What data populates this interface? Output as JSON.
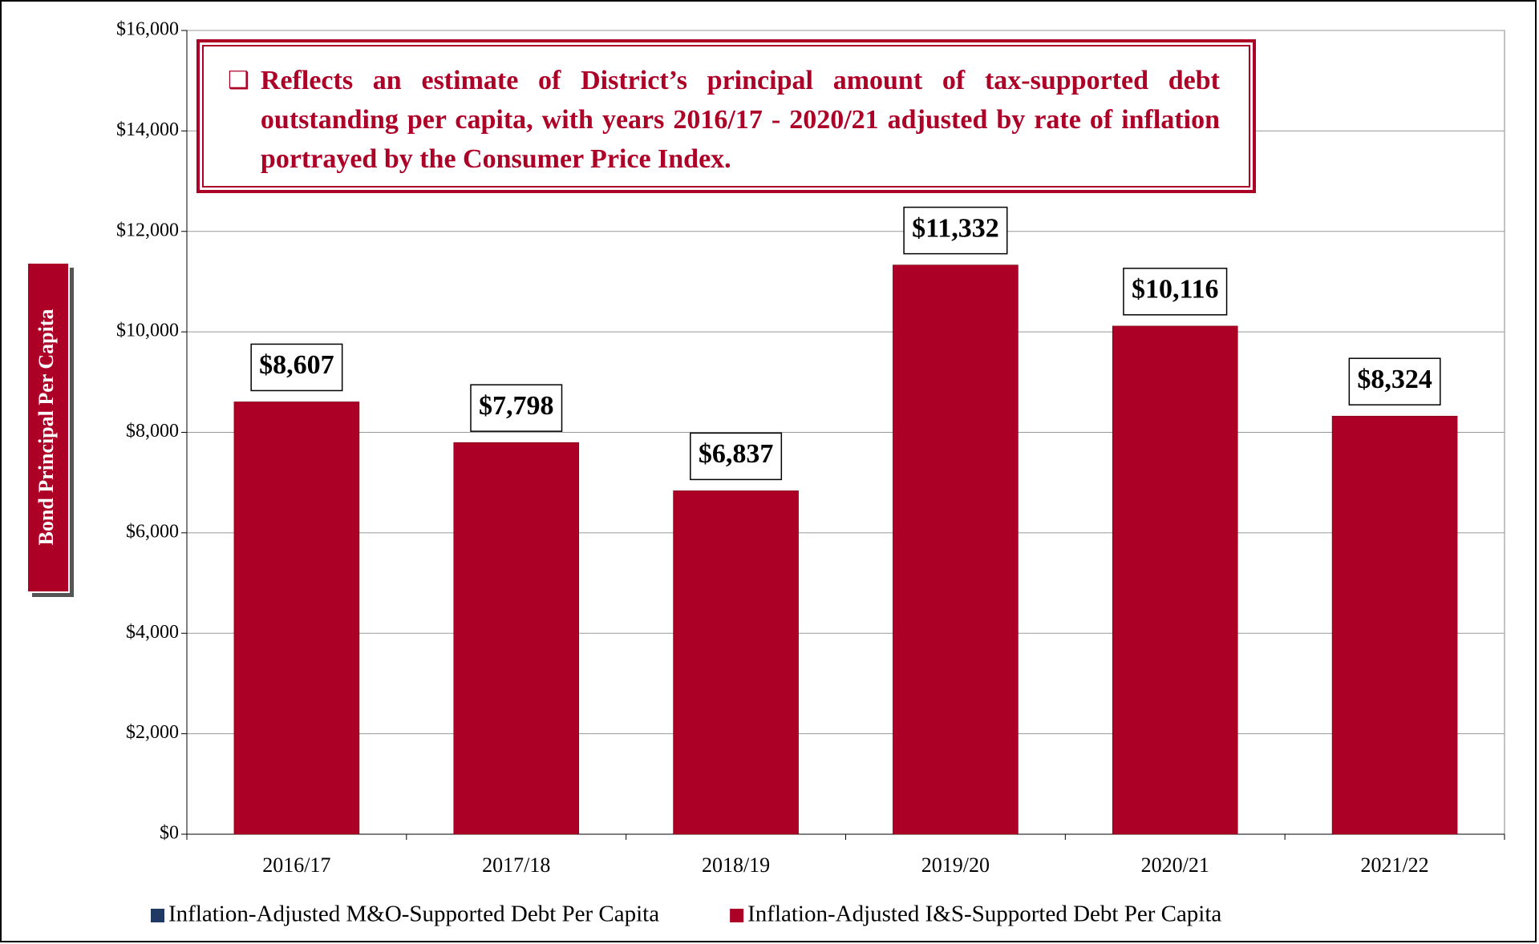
{
  "chart_data": {
    "type": "bar",
    "stacked": true,
    "ylabel": "Bond Principal Per Capita",
    "annotation": "Reflects an estimate of District’s principal amount of tax-supported debt outstanding per capita, with years 2016/17 - 2020/21 adjusted by rate of inflation portrayed by the Consumer Price Index.",
    "categories": [
      "2016/17",
      "2017/18",
      "2018/19",
      "2019/20",
      "2020/21",
      "2021/22"
    ],
    "series": [
      {
        "name": "Inflation-Adjusted M&O-Supported Debt Per Capita",
        "color": "#1f3864",
        "values": [
          0,
          0,
          0,
          0,
          0,
          0
        ]
      },
      {
        "name": "Inflation-Adjusted I&S-Supported Debt Per Capita",
        "color": "#ad0027",
        "values": [
          8607,
          7798,
          6837,
          11332,
          10116,
          8324
        ],
        "value_labels": [
          "$8,607",
          "$7,798",
          "$6,837",
          "$11,332",
          "$10,116",
          "$8,324"
        ]
      }
    ],
    "ylim": [
      0,
      16000
    ],
    "yticks": [
      {
        "value": 0,
        "label": "$0"
      },
      {
        "value": 2000,
        "label": "$2,000"
      },
      {
        "value": 4000,
        "label": "$4,000"
      },
      {
        "value": 6000,
        "label": "$6,000"
      },
      {
        "value": 8000,
        "label": "$8,000"
      },
      {
        "value": 10000,
        "label": "$10,000"
      },
      {
        "value": 12000,
        "label": "$12,000"
      },
      {
        "value": 14000,
        "label": "$14,000"
      },
      {
        "value": 16000,
        "label": "$16,000"
      }
    ],
    "grid": true,
    "legend": "bottom"
  }
}
